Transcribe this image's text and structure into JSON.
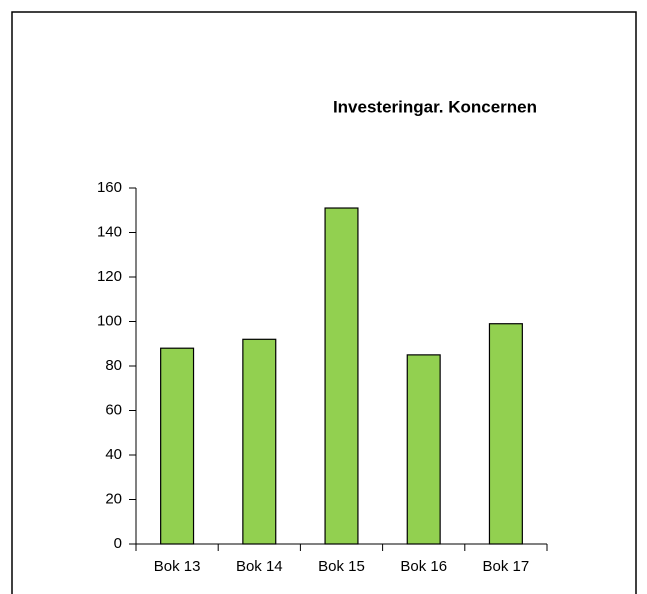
{
  "chart_data": {
    "type": "bar",
    "title": "Investeringar. Koncernen",
    "categories": [
      "Bok 13",
      "Bok 14",
      "Bok 15",
      "Bok 16",
      "Bok 17"
    ],
    "values": [
      88,
      92,
      151,
      85,
      99
    ],
    "color": "#92d050",
    "ylim": [
      0,
      160
    ],
    "yticks": [
      0,
      20,
      40,
      60,
      80,
      100,
      120,
      140,
      160
    ],
    "grid": false
  }
}
